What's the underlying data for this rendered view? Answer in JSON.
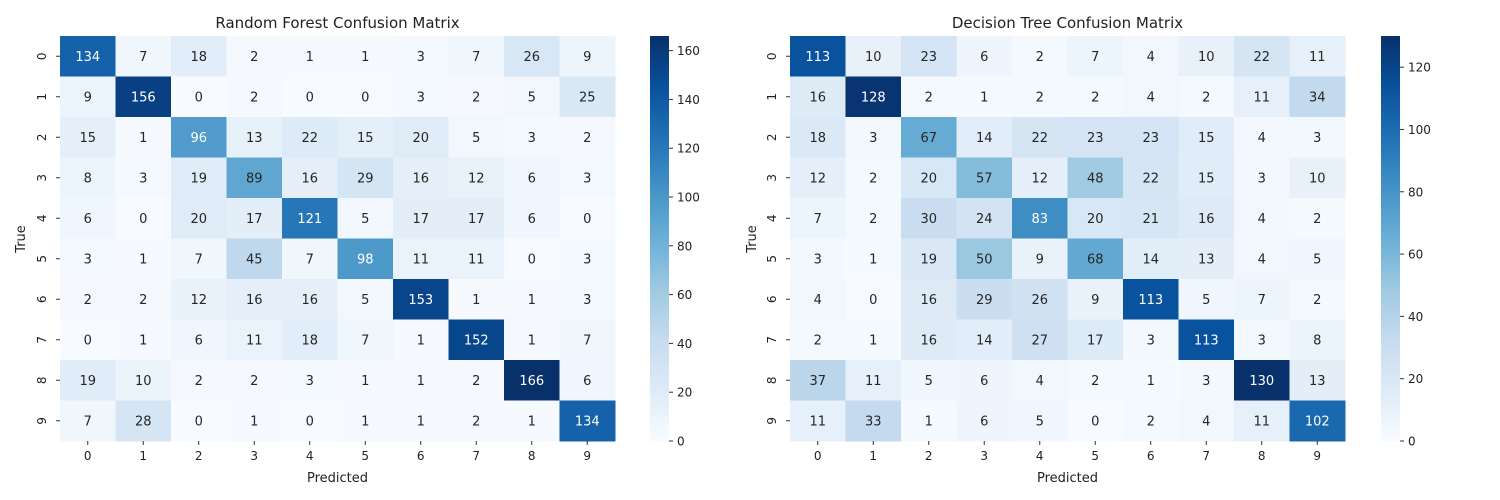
{
  "chart_data": [
    {
      "type": "heatmap",
      "title": "Random Forest Confusion Matrix",
      "xlabel": "Predicted",
      "ylabel": "True",
      "x_categories": [
        "0",
        "1",
        "2",
        "3",
        "4",
        "5",
        "6",
        "7",
        "8",
        "9"
      ],
      "y_categories": [
        "0",
        "1",
        "2",
        "3",
        "4",
        "5",
        "6",
        "7",
        "8",
        "9"
      ],
      "values": [
        [
          134,
          7,
          18,
          2,
          1,
          1,
          3,
          7,
          26,
          9
        ],
        [
          9,
          156,
          0,
          2,
          0,
          0,
          3,
          2,
          5,
          25
        ],
        [
          15,
          1,
          96,
          13,
          22,
          15,
          20,
          5,
          3,
          2
        ],
        [
          8,
          3,
          19,
          89,
          16,
          29,
          16,
          12,
          6,
          3
        ],
        [
          6,
          0,
          20,
          17,
          121,
          5,
          17,
          17,
          6,
          0
        ],
        [
          3,
          1,
          7,
          45,
          7,
          98,
          11,
          11,
          0,
          3
        ],
        [
          2,
          2,
          12,
          16,
          16,
          5,
          153,
          1,
          1,
          3
        ],
        [
          0,
          1,
          6,
          11,
          18,
          7,
          1,
          152,
          1,
          7
        ],
        [
          19,
          10,
          2,
          2,
          3,
          1,
          1,
          2,
          166,
          6
        ],
        [
          7,
          28,
          0,
          1,
          0,
          1,
          1,
          2,
          1,
          134
        ]
      ],
      "colorbar": {
        "colormap": "Blues",
        "range": [
          0,
          166
        ],
        "ticks": [
          0,
          20,
          40,
          60,
          80,
          100,
          120,
          140,
          160
        ]
      },
      "grid": false
    },
    {
      "type": "heatmap",
      "title": "Decision Tree Confusion Matrix",
      "xlabel": "Predicted",
      "ylabel": "True",
      "x_categories": [
        "0",
        "1",
        "2",
        "3",
        "4",
        "5",
        "6",
        "7",
        "8",
        "9"
      ],
      "y_categories": [
        "0",
        "1",
        "2",
        "3",
        "4",
        "5",
        "6",
        "7",
        "8",
        "9"
      ],
      "values": [
        [
          113,
          10,
          23,
          6,
          2,
          7,
          4,
          10,
          22,
          11
        ],
        [
          16,
          128,
          2,
          1,
          2,
          2,
          4,
          2,
          11,
          34
        ],
        [
          18,
          3,
          67,
          14,
          22,
          23,
          23,
          15,
          4,
          3
        ],
        [
          12,
          2,
          20,
          57,
          12,
          48,
          22,
          15,
          3,
          10
        ],
        [
          7,
          2,
          30,
          24,
          83,
          20,
          21,
          16,
          4,
          2
        ],
        [
          3,
          1,
          19,
          50,
          9,
          68,
          14,
          13,
          4,
          5
        ],
        [
          4,
          0,
          16,
          29,
          26,
          9,
          113,
          5,
          7,
          2
        ],
        [
          2,
          1,
          16,
          14,
          27,
          17,
          3,
          113,
          3,
          8
        ],
        [
          37,
          11,
          5,
          6,
          4,
          2,
          1,
          3,
          130,
          13
        ],
        [
          11,
          33,
          1,
          6,
          5,
          0,
          2,
          4,
          11,
          102
        ]
      ],
      "colorbar": {
        "colormap": "Blues",
        "range": [
          0,
          130
        ],
        "ticks": [
          0,
          20,
          40,
          60,
          80,
          100,
          120
        ]
      },
      "grid": false
    }
  ]
}
